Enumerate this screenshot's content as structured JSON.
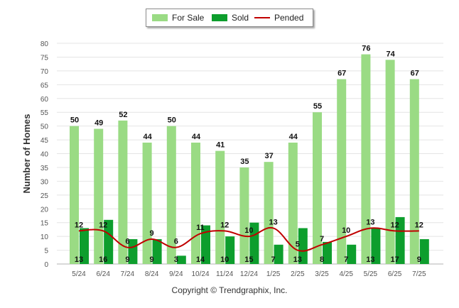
{
  "chart_data": {
    "type": "bar",
    "ylabel": "Number of Homes",
    "ylim": [
      0,
      80
    ],
    "yticks": [
      0,
      5,
      10,
      15,
      20,
      25,
      30,
      35,
      40,
      45,
      50,
      55,
      60,
      65,
      70,
      75,
      80
    ],
    "categories": [
      "5/24",
      "6/24",
      "7/24",
      "8/24",
      "9/24",
      "10/24",
      "11/24",
      "12/24",
      "1/25",
      "2/25",
      "3/25",
      "4/25",
      "5/25",
      "6/25",
      "7/25"
    ],
    "series": [
      {
        "name": "For Sale",
        "type": "bar",
        "color": "#9adb84",
        "values": [
          50,
          49,
          52,
          44,
          50,
          44,
          41,
          35,
          37,
          44,
          55,
          67,
          76,
          74,
          67
        ]
      },
      {
        "name": "Sold",
        "type": "bar",
        "color": "#0d9e2d",
        "values": [
          13,
          16,
          9,
          9,
          3,
          14,
          10,
          15,
          7,
          13,
          8,
          7,
          13,
          17,
          9
        ]
      },
      {
        "name": "Pended",
        "type": "line",
        "color": "#c00000",
        "values": [
          12,
          12,
          6,
          9,
          6,
          11,
          12,
          10,
          13,
          5,
          7,
          10,
          13,
          12,
          12
        ]
      }
    ],
    "legend_position": "top-center",
    "grid": true
  },
  "legend": {
    "for_sale": "For Sale",
    "sold": "Sold",
    "pended": "Pended"
  },
  "footer": {
    "copyright": "Copyright © Trendgraphix, Inc."
  }
}
